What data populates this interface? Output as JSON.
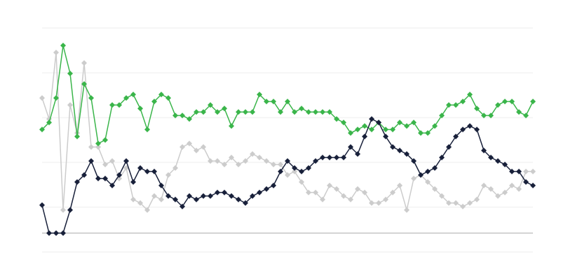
{
  "chart_data": {
    "type": "line",
    "title": "",
    "xlabel": "",
    "ylabel": "",
    "xlim": [
      0,
      70
    ],
    "ylim": [
      -27,
      293
    ],
    "grid": true,
    "gridlines": [
      -27,
      37,
      101,
      165,
      229,
      293
    ],
    "baseline": 0,
    "marker": "diamond",
    "legend": "none",
    "x": [
      0,
      1,
      2,
      3,
      4,
      5,
      6,
      7,
      8,
      9,
      10,
      11,
      12,
      13,
      14,
      15,
      16,
      17,
      18,
      19,
      20,
      21,
      22,
      23,
      24,
      25,
      26,
      27,
      28,
      29,
      30,
      31,
      32,
      33,
      34,
      35,
      36,
      37,
      38,
      39,
      40,
      41,
      42,
      43,
      44,
      45,
      46,
      47,
      48,
      49,
      50,
      51,
      52,
      53,
      54,
      55,
      56,
      57,
      58,
      59,
      60,
      61,
      62,
      63,
      64,
      65,
      66,
      67,
      68,
      69,
      70
    ],
    "series": [
      {
        "color": "#cccccc",
        "values": [
          193,
          163,
          258,
          33,
          183,
          143,
          243,
          123,
          123,
          98,
          103,
          78,
          93,
          48,
          43,
          33,
          53,
          48,
          83,
          93,
          123,
          128,
          118,
          123,
          103,
          103,
          98,
          108,
          98,
          103,
          113,
          108,
          103,
          98,
          98,
          83,
          88,
          73,
          58,
          58,
          48,
          68,
          63,
          53,
          48,
          63,
          58,
          43,
          43,
          48,
          58,
          68,
          33,
          78,
          83,
          73,
          63,
          53,
          43,
          43,
          38,
          43,
          48,
          68,
          63,
          53,
          58,
          68,
          63,
          88,
          88
        ]
      },
      {
        "color": "#3ab54a",
        "values": [
          148,
          158,
          193,
          268,
          228,
          138,
          213,
          193,
          128,
          133,
          183,
          183,
          193,
          198,
          178,
          148,
          188,
          198,
          193,
          168,
          168,
          163,
          173,
          173,
          183,
          173,
          178,
          153,
          173,
          173,
          173,
          198,
          188,
          188,
          173,
          188,
          173,
          178,
          173,
          173,
          173,
          173,
          163,
          158,
          143,
          148,
          153,
          148,
          158,
          148,
          148,
          158,
          153,
          158,
          143,
          143,
          153,
          168,
          183,
          183,
          188,
          198,
          178,
          168,
          168,
          183,
          188,
          188,
          173,
          168,
          188
        ]
      },
      {
        "color": "#18203a",
        "values": [
          40,
          0,
          0,
          0,
          33,
          73,
          83,
          103,
          78,
          78,
          68,
          83,
          103,
          73,
          93,
          88,
          88,
          68,
          53,
          48,
          38,
          53,
          48,
          53,
          53,
          58,
          58,
          53,
          48,
          43,
          53,
          58,
          63,
          68,
          88,
          103,
          93,
          88,
          93,
          103,
          108,
          108,
          108,
          108,
          123,
          113,
          138,
          163,
          158,
          138,
          123,
          118,
          113,
          103,
          83,
          88,
          93,
          108,
          123,
          138,
          148,
          153,
          148,
          118,
          108,
          103,
          98,
          88,
          88,
          73,
          68
        ]
      }
    ]
  }
}
